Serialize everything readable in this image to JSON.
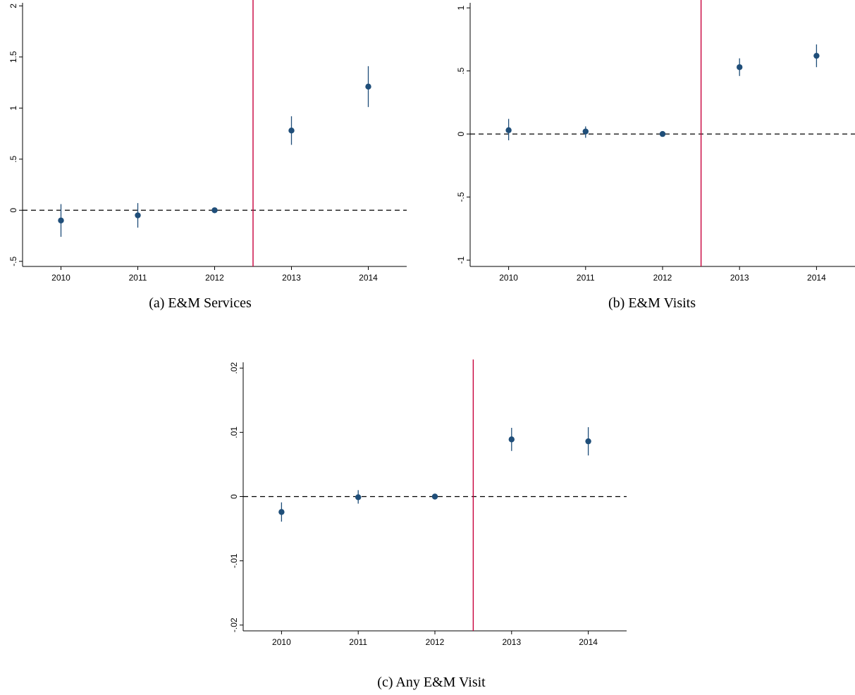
{
  "chart_data": [
    {
      "type": "scatter",
      "panel": "a",
      "caption": "(a) E&M Services",
      "categories": [
        "2010",
        "2011",
        "2012",
        "2013",
        "2014"
      ],
      "x": [
        2010,
        2011,
        2012,
        2013,
        2014
      ],
      "series": [
        {
          "estimates": [
            -0.1,
            -0.05,
            0.0,
            0.78,
            1.21
          ],
          "ci_low": [
            -0.26,
            -0.17,
            0.0,
            0.64,
            1.01
          ],
          "ci_high": [
            0.06,
            0.07,
            0.0,
            0.92,
            1.41
          ]
        }
      ],
      "yticks": [
        -0.5,
        0,
        0.5,
        1,
        1.5,
        2
      ],
      "ytick_labels": [
        "-.5",
        "0",
        ".5",
        "1",
        "1.5",
        "2"
      ],
      "ylim": [
        -0.55,
        2.03
      ],
      "xlim": [
        2009.5,
        2014.5
      ],
      "reference_line_y": 0,
      "treatment_line_x": 2012.5,
      "grid": false,
      "xlabel": "",
      "ylabel": "",
      "colors": {
        "marker": "#1f4e79",
        "reference_line": "#000000",
        "treatment_line": "#c8003c"
      }
    },
    {
      "type": "scatter",
      "panel": "b",
      "caption": "(b) E&M Visits",
      "categories": [
        "2010",
        "2011",
        "2012",
        "2013",
        "2014"
      ],
      "x": [
        2010,
        2011,
        2012,
        2013,
        2014
      ],
      "series": [
        {
          "estimates": [
            0.03,
            0.02,
            0.0,
            0.53,
            0.62
          ],
          "ci_low": [
            -0.05,
            -0.03,
            0.0,
            0.46,
            0.53
          ],
          "ci_high": [
            0.12,
            0.06,
            0.0,
            0.6,
            0.71
          ]
        }
      ],
      "yticks": [
        -1,
        -0.5,
        0,
        0.5,
        1
      ],
      "ytick_labels": [
        "-1",
        "-.5",
        "0",
        ".5",
        "1"
      ],
      "ylim": [
        -1.05,
        1.04
      ],
      "xlim": [
        2009.5,
        2014.5
      ],
      "reference_line_y": 0,
      "treatment_line_x": 2012.5,
      "grid": false,
      "xlabel": "",
      "ylabel": "",
      "colors": {
        "marker": "#1f4e79",
        "reference_line": "#000000",
        "treatment_line": "#c8003c"
      }
    },
    {
      "type": "scatter",
      "panel": "c",
      "caption": "(c) Any E&M Visit",
      "categories": [
        "2010",
        "2011",
        "2012",
        "2013",
        "2014"
      ],
      "x": [
        2010,
        2011,
        2012,
        2013,
        2014
      ],
      "series": [
        {
          "estimates": [
            -0.0024,
            -0.0001,
            0.0,
            0.0089,
            0.0086
          ],
          "ci_low": [
            -0.0039,
            -0.0011,
            0.0,
            0.0071,
            0.0064
          ],
          "ci_high": [
            -0.0009,
            0.001,
            0.0,
            0.0107,
            0.0108
          ]
        }
      ],
      "yticks": [
        -0.02,
        -0.01,
        0,
        0.01,
        0.02
      ],
      "ytick_labels": [
        "-.02",
        "-.01",
        "0",
        ".01",
        ".02"
      ],
      "ylim": [
        -0.0209,
        0.0209
      ],
      "xlim": [
        2009.5,
        2014.5
      ],
      "reference_line_y": 0,
      "treatment_line_x": 2012.5,
      "grid": false,
      "xlabel": "",
      "ylabel": "",
      "colors": {
        "marker": "#1f4e79",
        "reference_line": "#000000",
        "treatment_line": "#c8003c"
      }
    }
  ]
}
